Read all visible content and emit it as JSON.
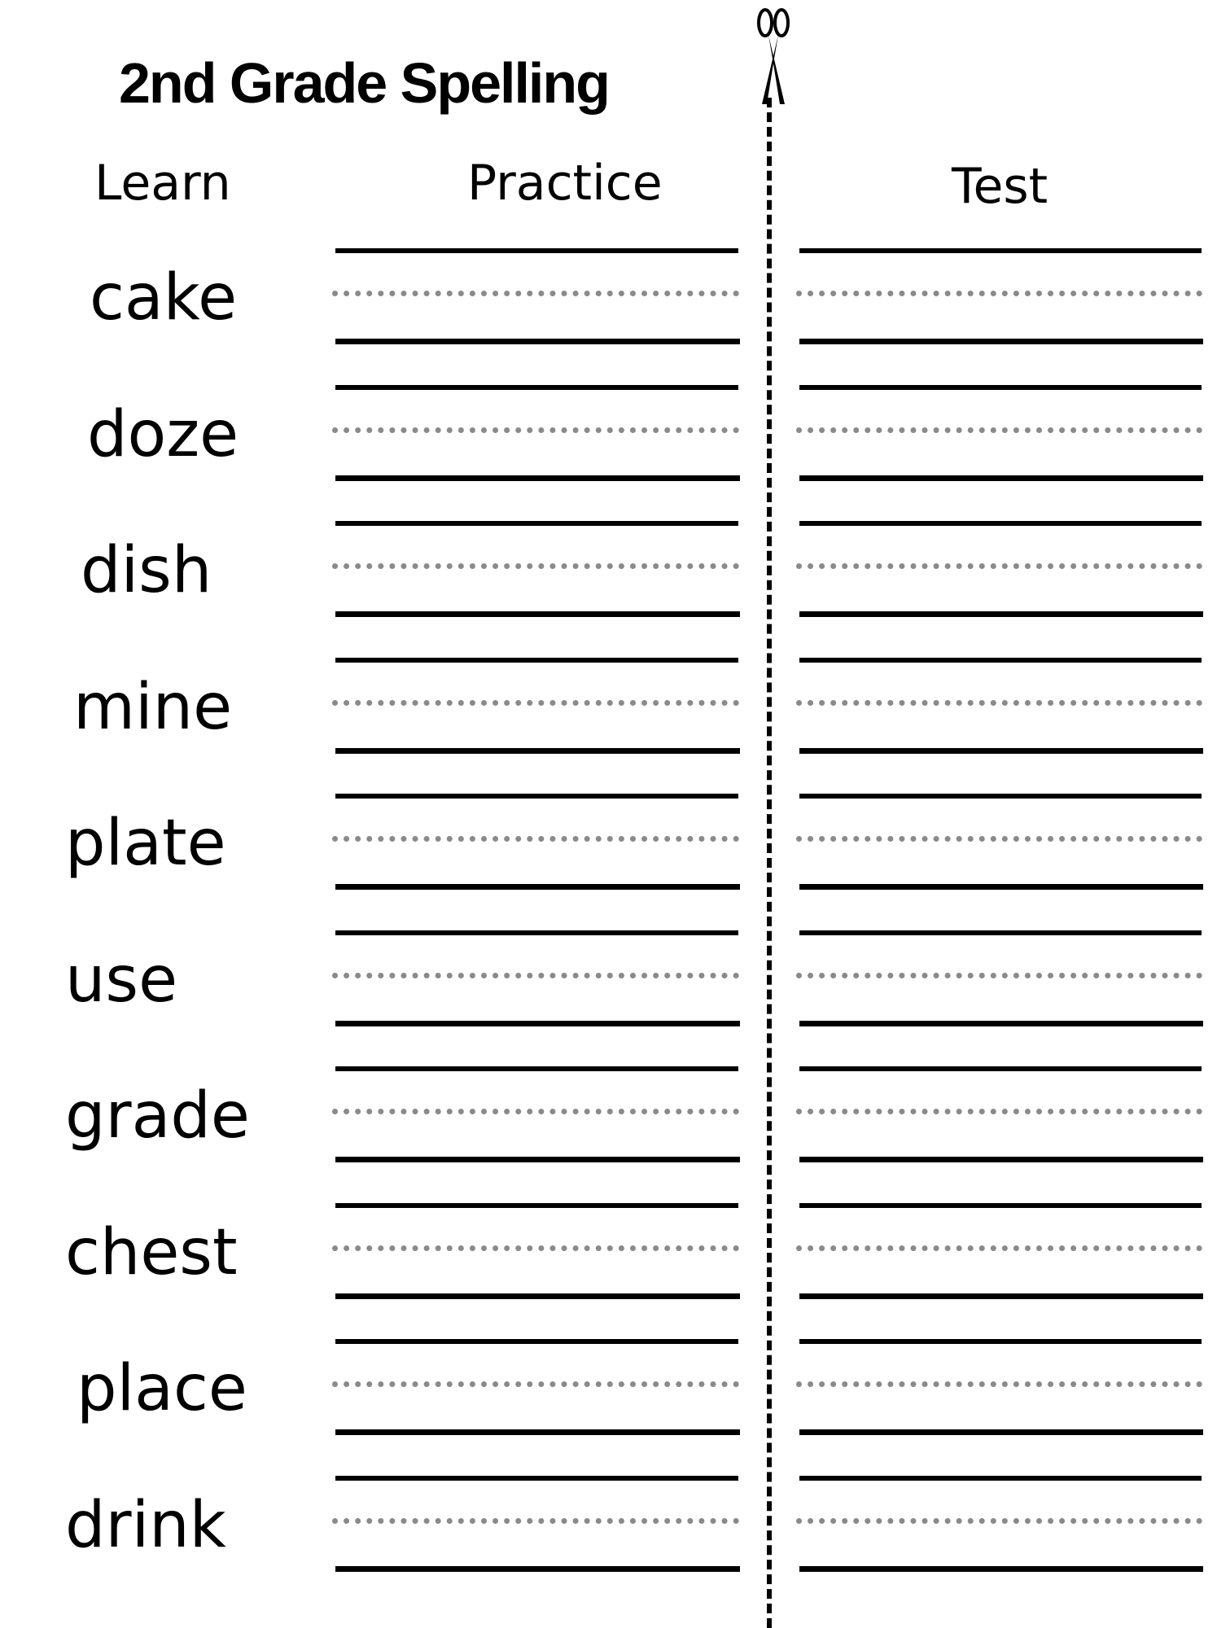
{
  "title": "2nd Grade Spelling",
  "headers": {
    "learn": "Learn",
    "practice": "Practice",
    "test": "Test"
  },
  "words": [
    "cake",
    "doze",
    "dish",
    "mine",
    "plate",
    "use",
    "grade",
    "chest",
    "place",
    "drink"
  ],
  "icons": {
    "cut_line": "scissors-icon"
  },
  "colors": {
    "ink": "#000000",
    "midline": "#8a8a8a"
  }
}
